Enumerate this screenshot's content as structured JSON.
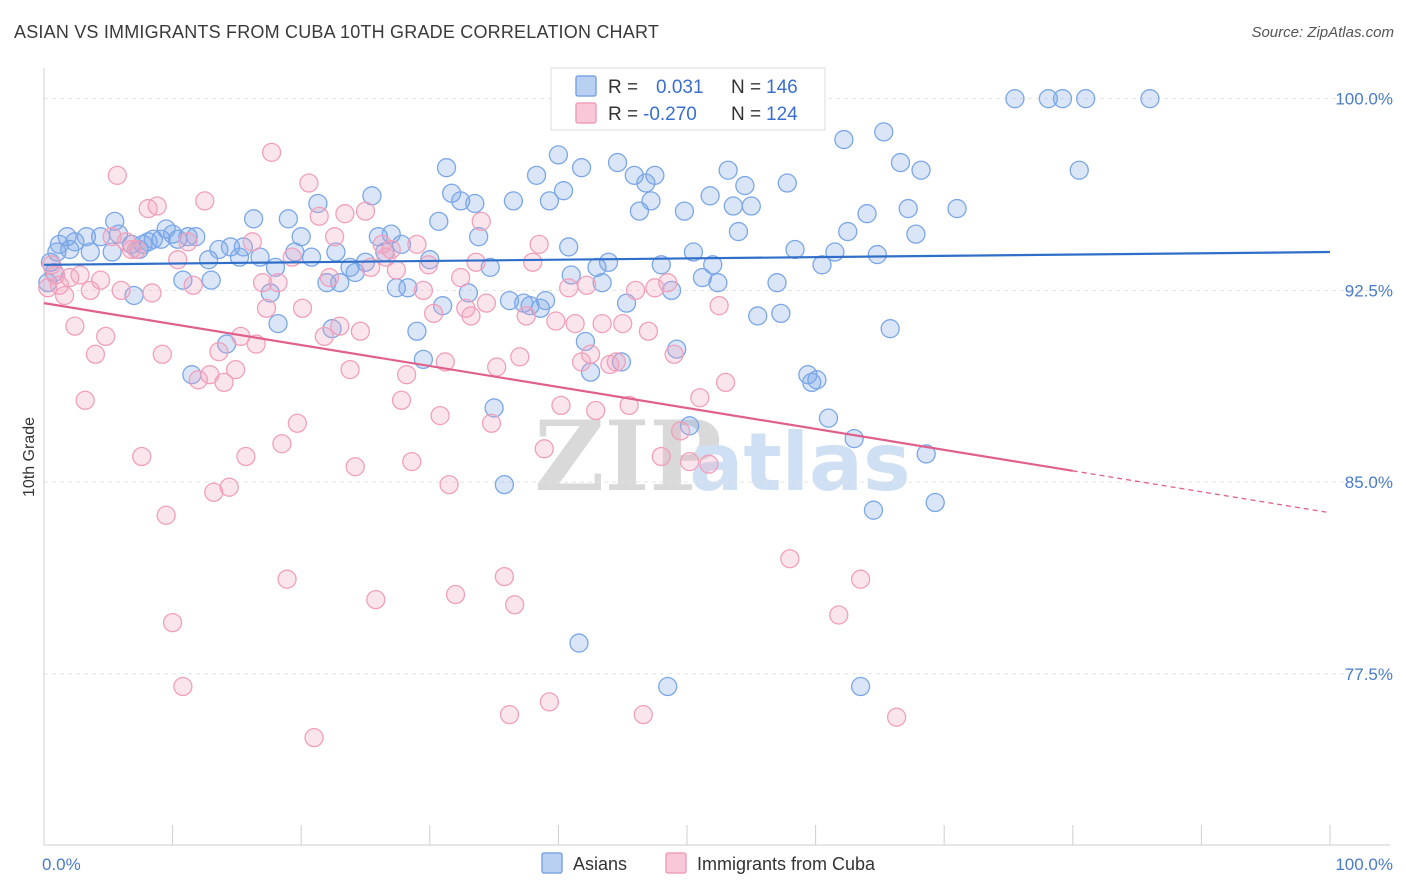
{
  "header": {
    "title": "ASIAN VS IMMIGRANTS FROM CUBA 10TH GRADE CORRELATION CHART",
    "source": "Source: ZipAtlas.com"
  },
  "watermark": {
    "zip": "ZIP",
    "atlas": "atlas"
  },
  "chart_data": {
    "type": "scatter",
    "title": "ASIAN VS IMMIGRANTS FROM CUBA 10TH GRADE CORRELATION CHART",
    "ylabel": "10th Grade",
    "xlabel": "",
    "xlim": [
      0,
      100
    ],
    "ylim": [
      70.8,
      101.2
    ],
    "x_tick_labels": [
      {
        "value": 0,
        "label": "0.0%"
      },
      {
        "value": 100,
        "label": "100.0%"
      }
    ],
    "y_tick_labels": [
      {
        "value": 100,
        "label": "100.0%"
      },
      {
        "value": 92.5,
        "label": "92.5%"
      },
      {
        "value": 85,
        "label": "85.0%"
      },
      {
        "value": 77.5,
        "label": "77.5%"
      }
    ],
    "grid": true,
    "legend": {
      "placement": "top-center",
      "rows": [
        {
          "r_label": "R =",
          "r_value": "0.031",
          "n_label": "N =",
          "n_value": "146"
        },
        {
          "r_label": "R =",
          "r_value": "-0.270",
          "n_label": "N =",
          "n_value": "124"
        }
      ]
    },
    "series": [
      {
        "name": "Asians",
        "color": "#7ba7e6",
        "line_color": "#2f6fc9",
        "trend": {
          "x0": 0,
          "y0": 93.5,
          "x1": 100,
          "y1": 94.0,
          "solid_until": 100
        },
        "points": [
          [
            0.3,
            92.8
          ],
          [
            0.5,
            93.6
          ],
          [
            0.8,
            93.2
          ],
          [
            1.0,
            94.0
          ],
          [
            1.2,
            94.3
          ],
          [
            1.8,
            94.6
          ],
          [
            2.0,
            94.1
          ],
          [
            2.4,
            94.4
          ],
          [
            3.3,
            94.6
          ],
          [
            3.6,
            94.0
          ],
          [
            4.4,
            94.6
          ],
          [
            5.3,
            94.0
          ],
          [
            5.5,
            95.2
          ],
          [
            5.8,
            94.7
          ],
          [
            6.8,
            94.3
          ],
          [
            7.0,
            92.3
          ],
          [
            7.4,
            94.1
          ],
          [
            7.7,
            94.3
          ],
          [
            8.1,
            94.4
          ],
          [
            8.5,
            94.5
          ],
          [
            9.1,
            94.5
          ],
          [
            9.5,
            94.9
          ],
          [
            10.0,
            94.7
          ],
          [
            10.4,
            94.5
          ],
          [
            10.8,
            92.9
          ],
          [
            11.2,
            94.6
          ],
          [
            11.5,
            89.2
          ],
          [
            11.8,
            94.6
          ],
          [
            12.8,
            93.7
          ],
          [
            13.0,
            92.9
          ],
          [
            13.6,
            94.1
          ],
          [
            14.2,
            90.4
          ],
          [
            14.5,
            94.2
          ],
          [
            15.2,
            93.8
          ],
          [
            15.5,
            94.2
          ],
          [
            16.3,
            95.3
          ],
          [
            16.8,
            93.8
          ],
          [
            17.6,
            92.4
          ],
          [
            18.0,
            93.4
          ],
          [
            18.2,
            91.2
          ],
          [
            19.0,
            95.3
          ],
          [
            19.5,
            94.0
          ],
          [
            20.0,
            94.6
          ],
          [
            20.8,
            93.8
          ],
          [
            21.3,
            95.9
          ],
          [
            22.0,
            92.8
          ],
          [
            22.4,
            91.0
          ],
          [
            22.7,
            94.0
          ],
          [
            23.0,
            92.8
          ],
          [
            23.8,
            93.4
          ],
          [
            24.2,
            93.2
          ],
          [
            25.0,
            93.6
          ],
          [
            25.5,
            96.2
          ],
          [
            26.0,
            94.6
          ],
          [
            26.5,
            94.0
          ],
          [
            27.0,
            94.7
          ],
          [
            27.4,
            92.6
          ],
          [
            27.8,
            94.3
          ],
          [
            28.3,
            92.6
          ],
          [
            29.0,
            90.9
          ],
          [
            29.5,
            89.8
          ],
          [
            30.0,
            93.7
          ],
          [
            30.7,
            95.2
          ],
          [
            31.0,
            91.9
          ],
          [
            31.3,
            97.3
          ],
          [
            31.7,
            96.3
          ],
          [
            32.4,
            96.0
          ],
          [
            33.0,
            92.4
          ],
          [
            33.5,
            95.9
          ],
          [
            33.8,
            94.6
          ],
          [
            34.7,
            93.4
          ],
          [
            35.0,
            87.9
          ],
          [
            35.8,
            84.9
          ],
          [
            36.2,
            92.1
          ],
          [
            36.5,
            96.0
          ],
          [
            37.3,
            92.0
          ],
          [
            37.8,
            91.9
          ],
          [
            38.3,
            97.0
          ],
          [
            38.6,
            91.8
          ],
          [
            39.0,
            92.1
          ],
          [
            39.3,
            96.0
          ],
          [
            40.0,
            97.8
          ],
          [
            40.4,
            96.4
          ],
          [
            40.8,
            94.2
          ],
          [
            41.0,
            93.1
          ],
          [
            41.6,
            78.7
          ],
          [
            41.8,
            97.3
          ],
          [
            42.1,
            90.5
          ],
          [
            42.5,
            89.3
          ],
          [
            43.0,
            93.4
          ],
          [
            43.4,
            92.8
          ],
          [
            43.9,
            93.6
          ],
          [
            44.6,
            97.5
          ],
          [
            44.9,
            89.7
          ],
          [
            45.3,
            92.0
          ],
          [
            45.9,
            97.0
          ],
          [
            46.3,
            95.6
          ],
          [
            46.8,
            96.7
          ],
          [
            47.2,
            96.0
          ],
          [
            47.5,
            97.0
          ],
          [
            48.0,
            93.5
          ],
          [
            48.5,
            77.0
          ],
          [
            48.8,
            92.5
          ],
          [
            49.2,
            90.2
          ],
          [
            49.8,
            95.6
          ],
          [
            50.2,
            87.2
          ],
          [
            50.5,
            94.0
          ],
          [
            51.2,
            93.0
          ],
          [
            51.8,
            96.2
          ],
          [
            52.0,
            93.5
          ],
          [
            52.4,
            92.8
          ],
          [
            53.2,
            97.2
          ],
          [
            53.6,
            95.8
          ],
          [
            54.0,
            94.8
          ],
          [
            54.5,
            96.6
          ],
          [
            55.0,
            95.8
          ],
          [
            55.5,
            91.5
          ],
          [
            56.2,
            99.2
          ],
          [
            57.0,
            92.8
          ],
          [
            57.3,
            91.6
          ],
          [
            57.8,
            96.7
          ],
          [
            58.4,
            94.1
          ],
          [
            59.4,
            89.2
          ],
          [
            59.7,
            88.9
          ],
          [
            60.1,
            89.0
          ],
          [
            60.5,
            93.5
          ],
          [
            61.0,
            87.5
          ],
          [
            61.5,
            94.0
          ],
          [
            62.2,
            98.4
          ],
          [
            62.5,
            94.8
          ],
          [
            63.0,
            86.7
          ],
          [
            63.5,
            77.0
          ],
          [
            64.0,
            95.5
          ],
          [
            64.5,
            83.9
          ],
          [
            64.8,
            93.9
          ],
          [
            65.3,
            98.7
          ],
          [
            65.8,
            91.0
          ],
          [
            66.6,
            97.5
          ],
          [
            67.2,
            95.7
          ],
          [
            67.8,
            94.7
          ],
          [
            68.2,
            97.2
          ],
          [
            68.6,
            86.1
          ],
          [
            69.3,
            84.2
          ],
          [
            71.0,
            95.7
          ],
          [
            75.5,
            100.0
          ],
          [
            78.1,
            100.0
          ],
          [
            79.2,
            100.0
          ],
          [
            80.5,
            97.2
          ],
          [
            81.0,
            100.0
          ],
          [
            86.0,
            100.0
          ]
        ]
      },
      {
        "name": "Immigrants from Cuba",
        "color": "#f0a0bc",
        "line_color": "#e0608c",
        "trend": {
          "x0": 0,
          "y0": 92.0,
          "x1": 100,
          "y1": 83.8,
          "solid_until": 80
        },
        "points": [
          [
            0.3,
            92.6
          ],
          [
            0.6,
            93.5
          ],
          [
            0.9,
            93.1
          ],
          [
            1.2,
            92.7
          ],
          [
            1.6,
            92.3
          ],
          [
            2.0,
            93.0
          ],
          [
            2.4,
            91.1
          ],
          [
            2.8,
            93.1
          ],
          [
            3.2,
            88.2
          ],
          [
            3.6,
            92.5
          ],
          [
            4.0,
            90.0
          ],
          [
            4.4,
            92.9
          ],
          [
            4.8,
            90.7
          ],
          [
            5.3,
            94.6
          ],
          [
            5.7,
            97.0
          ],
          [
            6.0,
            92.5
          ],
          [
            6.4,
            94.4
          ],
          [
            6.8,
            94.1
          ],
          [
            7.2,
            94.1
          ],
          [
            7.6,
            86.0
          ],
          [
            8.1,
            95.7
          ],
          [
            8.4,
            92.4
          ],
          [
            8.8,
            95.8
          ],
          [
            9.2,
            90.0
          ],
          [
            9.5,
            83.7
          ],
          [
            10.0,
            79.5
          ],
          [
            10.4,
            93.7
          ],
          [
            10.8,
            77.0
          ],
          [
            11.2,
            94.4
          ],
          [
            11.6,
            92.7
          ],
          [
            12.0,
            89.0
          ],
          [
            12.5,
            96.0
          ],
          [
            12.9,
            89.2
          ],
          [
            13.2,
            84.6
          ],
          [
            13.6,
            90.1
          ],
          [
            14.0,
            88.9
          ],
          [
            14.4,
            84.8
          ],
          [
            14.9,
            89.4
          ],
          [
            15.3,
            90.7
          ],
          [
            15.7,
            86.0
          ],
          [
            16.2,
            94.4
          ],
          [
            16.5,
            90.4
          ],
          [
            17.0,
            92.8
          ],
          [
            17.3,
            91.8
          ],
          [
            17.7,
            97.9
          ],
          [
            18.2,
            92.8
          ],
          [
            18.5,
            86.5
          ],
          [
            18.9,
            81.2
          ],
          [
            19.3,
            93.8
          ],
          [
            19.7,
            87.3
          ],
          [
            20.1,
            91.8
          ],
          [
            20.6,
            96.7
          ],
          [
            21.0,
            75.0
          ],
          [
            21.4,
            95.4
          ],
          [
            21.8,
            90.7
          ],
          [
            22.2,
            93.0
          ],
          [
            22.6,
            94.6
          ],
          [
            23.0,
            91.1
          ],
          [
            23.4,
            95.5
          ],
          [
            23.8,
            89.4
          ],
          [
            24.2,
            85.6
          ],
          [
            24.6,
            90.9
          ],
          [
            25.0,
            95.6
          ],
          [
            25.4,
            93.4
          ],
          [
            25.8,
            80.4
          ],
          [
            26.3,
            94.3
          ],
          [
            26.6,
            93.8
          ],
          [
            27.0,
            94.1
          ],
          [
            27.4,
            93.3
          ],
          [
            27.8,
            88.2
          ],
          [
            28.2,
            89.2
          ],
          [
            28.6,
            85.8
          ],
          [
            29.0,
            94.3
          ],
          [
            29.5,
            92.5
          ],
          [
            29.9,
            93.5
          ],
          [
            30.3,
            91.6
          ],
          [
            30.8,
            87.6
          ],
          [
            31.2,
            89.7
          ],
          [
            31.5,
            84.9
          ],
          [
            32.0,
            80.6
          ],
          [
            32.4,
            93.0
          ],
          [
            32.8,
            91.8
          ],
          [
            33.2,
            91.5
          ],
          [
            33.6,
            93.6
          ],
          [
            34.0,
            95.2
          ],
          [
            34.4,
            92.0
          ],
          [
            34.8,
            87.3
          ],
          [
            35.2,
            89.5
          ],
          [
            35.8,
            81.3
          ],
          [
            36.2,
            75.9
          ],
          [
            36.6,
            80.2
          ],
          [
            37.0,
            89.9
          ],
          [
            37.5,
            91.5
          ],
          [
            38.0,
            93.6
          ],
          [
            38.5,
            94.3
          ],
          [
            38.9,
            86.3
          ],
          [
            39.3,
            76.4
          ],
          [
            39.8,
            91.3
          ],
          [
            40.2,
            88.0
          ],
          [
            40.8,
            92.6
          ],
          [
            41.3,
            91.2
          ],
          [
            41.8,
            89.7
          ],
          [
            42.2,
            92.7
          ],
          [
            42.5,
            90.0
          ],
          [
            42.9,
            87.8
          ],
          [
            43.4,
            91.2
          ],
          [
            44.0,
            89.6
          ],
          [
            44.5,
            89.7
          ],
          [
            45.0,
            91.2
          ],
          [
            45.5,
            88.0
          ],
          [
            46.0,
            92.5
          ],
          [
            46.6,
            75.9
          ],
          [
            47.0,
            90.9
          ],
          [
            47.5,
            92.6
          ],
          [
            48.0,
            86.0
          ],
          [
            48.5,
            92.8
          ],
          [
            49.0,
            90.0
          ],
          [
            49.5,
            87.0
          ],
          [
            50.2,
            85.8
          ],
          [
            51.0,
            88.3
          ],
          [
            51.7,
            85.7
          ],
          [
            52.5,
            91.9
          ],
          [
            53.0,
            88.9
          ],
          [
            58.0,
            82.0
          ],
          [
            61.8,
            79.8
          ],
          [
            63.5,
            81.2
          ],
          [
            66.3,
            75.8
          ]
        ]
      }
    ]
  },
  "bottom_legend": {
    "asians": "Asians",
    "cuba": "Immigrants from Cuba"
  }
}
